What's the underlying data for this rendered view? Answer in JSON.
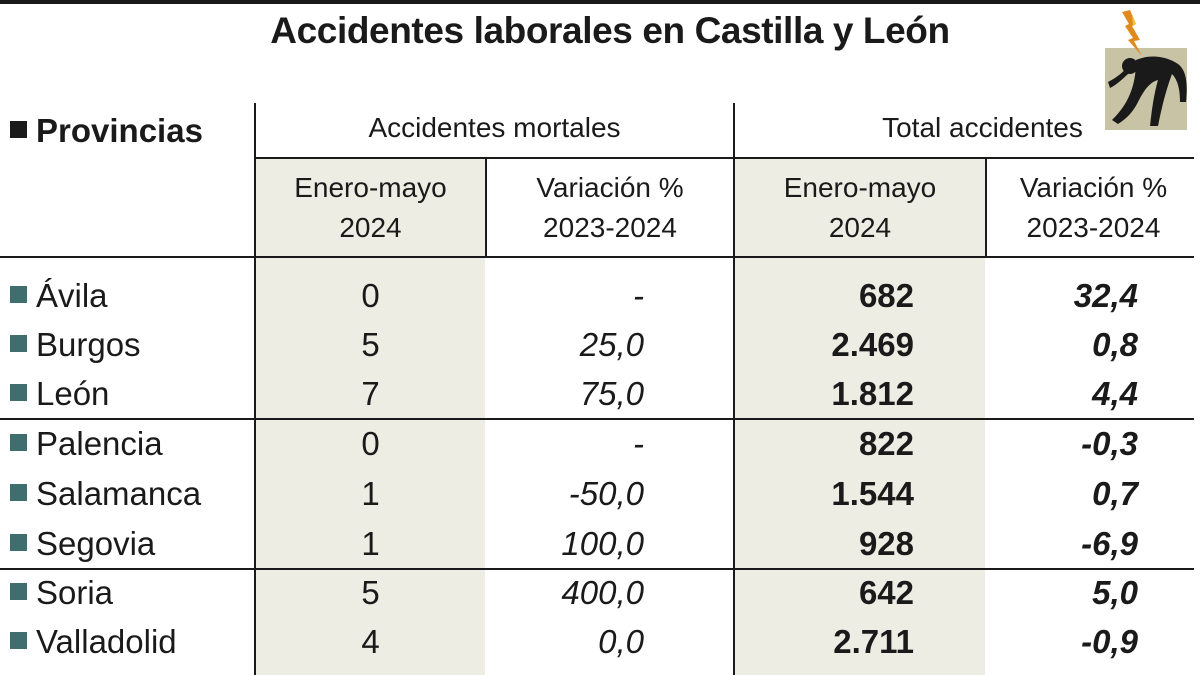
{
  "title": "Accidentes laborales en Castilla y León",
  "icon": "electrocuted-worker-icon",
  "colors": {
    "bullet": "#3f6e6e",
    "shade": "#eeede4",
    "text": "#1a1a1a"
  },
  "chart_data": {
    "type": "table",
    "title": "Accidentes laborales en Castilla y León",
    "row_header": "Provincias",
    "groups": [
      {
        "label": "Accidentes mortales",
        "columns": [
          {
            "line1": "Enero-mayo",
            "line2": "2024"
          },
          {
            "line1": "Variación %",
            "line2": "2023-2024"
          }
        ]
      },
      {
        "label": "Total accidentes",
        "columns": [
          {
            "line1": "Enero-mayo",
            "line2": "2024"
          },
          {
            "line1": "Variación %",
            "line2": "2023-2024"
          }
        ]
      }
    ],
    "rows": [
      {
        "provincia": "Ávila",
        "mortales": "0",
        "var_mortales": "-",
        "total": "682",
        "var_total": "32,4"
      },
      {
        "provincia": "Burgos",
        "mortales": "5",
        "var_mortales": "25,0",
        "total": "2.469",
        "var_total": "0,8"
      },
      {
        "provincia": "León",
        "mortales": "7",
        "var_mortales": "75,0",
        "total": "1.812",
        "var_total": "4,4"
      },
      {
        "provincia": "Palencia",
        "mortales": "0",
        "var_mortales": "-",
        "total": "822",
        "var_total": "-0,3"
      },
      {
        "provincia": "Salamanca",
        "mortales": "1",
        "var_mortales": "-50,0",
        "total": "1.544",
        "var_total": "0,7"
      },
      {
        "provincia": "Segovia",
        "mortales": "1",
        "var_mortales": "100,0",
        "total": "928",
        "var_total": "-6,9"
      },
      {
        "provincia": "Soria",
        "mortales": "5",
        "var_mortales": "400,0",
        "total": "642",
        "var_total": "5,0"
      },
      {
        "provincia": "Valladolid",
        "mortales": "4",
        "var_mortales": "0,0",
        "total": "2.711",
        "var_total": "-0,9"
      }
    ]
  }
}
